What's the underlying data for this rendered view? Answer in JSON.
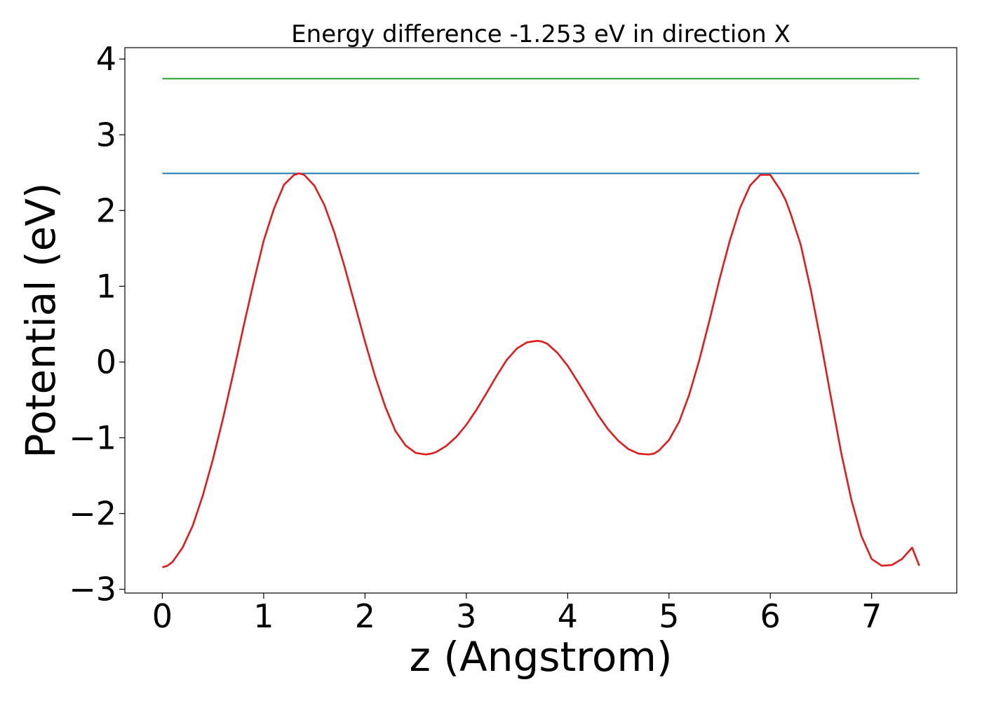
{
  "chart_data": {
    "type": "line",
    "title": "Energy difference -1.253 eV in direction X",
    "xlabel": "z (Angstrom)",
    "ylabel": "Potential (eV)",
    "xlim": [
      -0.37,
      7.84
    ],
    "ylim": [
      -3.05,
      4.15
    ],
    "xticks": [
      0,
      1,
      2,
      3,
      4,
      5,
      6,
      7
    ],
    "yticks": [
      -3,
      -2,
      -1,
      0,
      1,
      2,
      3,
      4
    ],
    "xtick_labels": [
      "0",
      "1",
      "2",
      "3",
      "4",
      "5",
      "6",
      "7"
    ],
    "ytick_labels": [
      "−3",
      "−2",
      "−1",
      "0",
      "1",
      "2",
      "3",
      "4"
    ],
    "grid": false,
    "series": [
      {
        "color": "#1f77b4",
        "x": [
          0,
          7.47
        ],
        "y": [
          2.49,
          2.49
        ]
      },
      {
        "color": "#2ca02c",
        "x": [
          0,
          7.47
        ],
        "y": [
          3.74,
          3.74
        ]
      },
      {
        "color": "#e31a1c",
        "x": [
          0,
          0.05,
          0.1,
          0.2,
          0.3,
          0.4,
          0.5,
          0.6,
          0.7,
          0.8,
          0.9,
          1.0,
          1.1,
          1.2,
          1.3,
          1.35,
          1.4,
          1.5,
          1.6,
          1.7,
          1.8,
          1.9,
          2.0,
          2.1,
          2.2,
          2.3,
          2.4,
          2.5,
          2.6,
          2.65,
          2.7,
          2.8,
          2.9,
          3.0,
          3.1,
          3.2,
          3.3,
          3.4,
          3.5,
          3.6,
          3.7,
          3.75,
          3.8,
          3.9,
          4.0,
          4.1,
          4.2,
          4.3,
          4.4,
          4.5,
          4.6,
          4.7,
          4.8,
          4.85,
          4.9,
          5.0,
          5.1,
          5.2,
          5.3,
          5.4,
          5.5,
          5.6,
          5.7,
          5.8,
          5.9,
          6.0,
          6.1,
          6.15,
          6.2,
          6.3,
          6.4,
          6.5,
          6.6,
          6.7,
          6.8,
          6.9,
          7.0,
          7.1,
          7.2,
          7.3,
          7.4,
          7.47
        ],
        "y": [
          -2.71,
          -2.69,
          -2.64,
          -2.45,
          -2.16,
          -1.76,
          -1.28,
          -0.74,
          -0.15,
          0.46,
          1.05,
          1.6,
          2.02,
          2.34,
          2.47,
          2.49,
          2.47,
          2.33,
          2.07,
          1.7,
          1.25,
          0.76,
          0.27,
          -0.19,
          -0.59,
          -0.91,
          -1.1,
          -1.2,
          -1.22,
          -1.21,
          -1.19,
          -1.11,
          -0.99,
          -0.83,
          -0.63,
          -0.41,
          -0.18,
          0.03,
          0.18,
          0.26,
          0.28,
          0.27,
          0.24,
          0.12,
          -0.05,
          -0.26,
          -0.48,
          -0.7,
          -0.89,
          -1.04,
          -1.15,
          -1.21,
          -1.22,
          -1.21,
          -1.17,
          -1.03,
          -0.79,
          -0.43,
          0.03,
          0.55,
          1.1,
          1.6,
          2.03,
          2.33,
          2.47,
          2.47,
          2.27,
          2.14,
          1.96,
          1.55,
          0.95,
          0.26,
          -0.48,
          -1.2,
          -1.82,
          -2.3,
          -2.6,
          -2.69,
          -2.68,
          -2.6,
          -2.45,
          -2.69
        ]
      }
    ]
  }
}
